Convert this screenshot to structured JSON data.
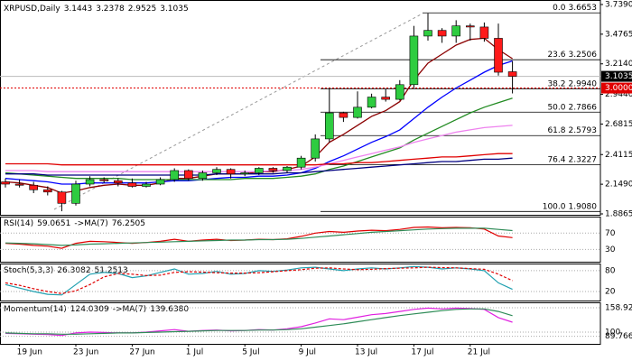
{
  "chart_data": [
    {
      "type": "candlestick",
      "title": "XRPUSD,Daily",
      "ohlc_header": [
        3.1443,
        3.2378,
        2.9525,
        3.1035
      ],
      "categories": [
        null,
        "19 Jun",
        null,
        null,
        null,
        "23 Jun",
        null,
        null,
        null,
        "27 Jun",
        null,
        null,
        null,
        "1 Jul",
        null,
        null,
        null,
        "5 Jul",
        null,
        null,
        null,
        "9 Jul",
        null,
        null,
        null,
        "13 Jul",
        null,
        null,
        null,
        "17 Jul",
        null,
        null,
        null,
        "21 Jul",
        null,
        null,
        null
      ],
      "open": [
        2.17,
        2.15,
        2.14,
        2.1,
        2.08,
        1.98,
        2.15,
        2.19,
        2.18,
        2.16,
        2.13,
        2.15,
        2.19,
        2.27,
        2.2,
        2.25,
        2.28,
        2.24,
        2.25,
        2.29,
        2.27,
        2.3,
        2.38,
        2.55,
        2.78,
        2.74,
        2.83,
        2.92,
        2.9,
        3.03,
        3.46,
        3.51,
        3.46,
        3.55,
        3.54,
        3.44,
        3.1443
      ],
      "high": [
        2.2,
        2.19,
        2.17,
        2.13,
        2.09,
        2.18,
        2.22,
        2.21,
        2.2,
        2.2,
        2.17,
        2.21,
        2.29,
        2.28,
        2.27,
        2.3,
        2.29,
        2.27,
        2.3,
        2.3,
        2.31,
        2.4,
        2.59,
        3.0,
        2.79,
        2.97,
        2.95,
        2.99,
        3.07,
        3.55,
        3.66,
        3.53,
        3.6,
        3.57,
        3.58,
        3.57,
        3.2378
      ],
      "low": [
        2.12,
        2.12,
        2.07,
        2.05,
        1.91,
        1.96,
        2.13,
        2.16,
        2.13,
        2.12,
        2.12,
        2.14,
        2.17,
        2.18,
        2.18,
        2.23,
        2.2,
        2.22,
        2.23,
        2.25,
        2.25,
        2.28,
        2.35,
        2.52,
        2.7,
        2.73,
        2.82,
        2.88,
        2.89,
        3.0,
        3.42,
        3.4,
        3.4,
        3.42,
        3.41,
        3.11,
        2.9525
      ],
      "close": [
        2.15,
        2.14,
        2.1,
        2.08,
        1.98,
        2.15,
        2.19,
        2.18,
        2.16,
        2.13,
        2.15,
        2.19,
        2.27,
        2.2,
        2.25,
        2.28,
        2.24,
        2.25,
        2.29,
        2.27,
        2.3,
        2.38,
        2.55,
        2.78,
        2.74,
        2.83,
        2.92,
        2.9,
        3.03,
        3.46,
        3.51,
        3.46,
        3.55,
        3.54,
        3.44,
        3.14,
        3.1035
      ],
      "up_color": "#2ecc40",
      "down_color": "#ff1a1a",
      "series": [
        {
          "color": "#8b0000",
          "values": [
            2.17,
            2.16,
            2.14,
            2.12,
            2.07,
            2.09,
            2.12,
            2.14,
            2.15,
            2.14,
            2.14,
            2.16,
            2.2,
            2.2,
            2.22,
            2.24,
            2.24,
            2.24,
            2.26,
            2.26,
            2.28,
            2.31,
            2.39,
            2.52,
            2.59,
            2.67,
            2.75,
            2.8,
            2.88,
            3.07,
            3.22,
            3.3,
            3.38,
            3.43,
            3.44,
            3.34,
            3.26
          ]
        },
        {
          "color": "#0000ff",
          "values": [
            2.2,
            2.19,
            2.18,
            2.17,
            2.15,
            2.15,
            2.16,
            2.16,
            2.16,
            2.16,
            2.16,
            2.17,
            2.18,
            2.18,
            2.19,
            2.2,
            2.21,
            2.21,
            2.22,
            2.22,
            2.23,
            2.25,
            2.29,
            2.35,
            2.4,
            2.46,
            2.52,
            2.57,
            2.63,
            2.73,
            2.83,
            2.92,
            3.0,
            3.07,
            3.14,
            3.2,
            3.24
          ]
        },
        {
          "color": "#228b22",
          "values": [
            2.25,
            2.24,
            2.23,
            2.22,
            2.21,
            2.2,
            2.2,
            2.2,
            2.2,
            2.19,
            2.19,
            2.19,
            2.19,
            2.19,
            2.19,
            2.19,
            2.19,
            2.2,
            2.2,
            2.2,
            2.21,
            2.22,
            2.24,
            2.28,
            2.31,
            2.35,
            2.39,
            2.43,
            2.47,
            2.54,
            2.6,
            2.66,
            2.72,
            2.78,
            2.83,
            2.87,
            2.91
          ]
        },
        {
          "color": "#ee82ee",
          "values": [
            2.27,
            2.27,
            2.27,
            2.26,
            2.26,
            2.26,
            2.26,
            2.26,
            2.26,
            2.26,
            2.26,
            2.26,
            2.26,
            2.26,
            2.26,
            2.26,
            2.26,
            2.26,
            2.26,
            2.27,
            2.27,
            2.28,
            2.3,
            2.33,
            2.36,
            2.39,
            2.42,
            2.45,
            2.48,
            2.52,
            2.55,
            2.58,
            2.61,
            2.63,
            2.65,
            2.66,
            2.67
          ]
        },
        {
          "color": "#e00000",
          "values": [
            2.33,
            2.33,
            2.33,
            2.33,
            2.32,
            2.32,
            2.32,
            2.32,
            2.32,
            2.32,
            2.32,
            2.32,
            2.32,
            2.32,
            2.32,
            2.32,
            2.32,
            2.32,
            2.32,
            2.32,
            2.32,
            2.32,
            2.32,
            2.33,
            2.33,
            2.34,
            2.34,
            2.35,
            2.36,
            2.37,
            2.38,
            2.39,
            2.39,
            2.4,
            2.41,
            2.42,
            2.42
          ]
        },
        {
          "color": "#000080",
          "values": [
            2.24,
            2.24,
            2.24,
            2.23,
            2.23,
            2.23,
            2.23,
            2.23,
            2.23,
            2.23,
            2.23,
            2.23,
            2.23,
            2.23,
            2.23,
            2.24,
            2.24,
            2.24,
            2.24,
            2.24,
            2.25,
            2.25,
            2.26,
            2.27,
            2.28,
            2.29,
            2.3,
            2.31,
            2.32,
            2.33,
            2.34,
            2.35,
            2.35,
            2.36,
            2.37,
            2.37,
            2.38
          ]
        }
      ],
      "ylim": [
        1.8865,
        3.739
      ],
      "yticks": [
        {
          "value": 3.739,
          "label": "3.7390"
        },
        3.4765,
        {
          "value": 3.214,
          "label": "3.2140"
        },
        {
          "value": 2.944,
          "label": "2.9440"
        },
        2.6815,
        2.4115,
        {
          "value": 2.149,
          "label": "2.1490"
        },
        1.8865
      ],
      "fib_levels": [
        {
          "ratio": "0.0",
          "price": 3.6653
        },
        {
          "ratio": "23.6",
          "price": 3.2506
        },
        {
          "ratio": "38.2",
          "price": {
            "value": 2.994,
            "label": "2.9940"
          }
        },
        {
          "ratio": "50.0",
          "price": 2.7866
        },
        {
          "ratio": "61.8",
          "price": 2.5793
        },
        {
          "ratio": "76.4",
          "price": 2.3227
        },
        {
          "ratio": "100.0",
          "price": {
            "value": 1.908,
            "label": "1.9080"
          }
        }
      ],
      "last_price": 3.1035,
      "alert_price": {
        "value": 3,
        "label": "3.0000"
      }
    },
    {
      "type": "line",
      "title": "RSI(14)",
      "value": 59.0651,
      "ma_label": "->MA(7)",
      "ma_value": 76.2505,
      "series": [
        {
          "color": "#e00000",
          "values": [
            45,
            43,
            40,
            38,
            33,
            45,
            50,
            49,
            47,
            45,
            47,
            50,
            55,
            50,
            53,
            55,
            52,
            53,
            55,
            54,
            56,
            62,
            70,
            74,
            72,
            75,
            77,
            76,
            79,
            84,
            85,
            83,
            84,
            83,
            80,
            63,
            59.0651
          ]
        },
        {
          "color": "#2e8b57",
          "values": [
            46,
            45,
            44,
            42,
            40,
            41,
            43,
            44,
            45,
            46,
            47,
            48,
            49,
            50,
            51,
            52,
            53,
            53,
            54,
            54,
            55,
            57,
            60,
            63,
            66,
            69,
            72,
            74,
            76,
            78,
            80,
            81,
            82,
            82,
            82,
            79,
            76.2505
          ]
        }
      ],
      "ylim": [
        0,
        106
      ],
      "yticks": [
        70,
        30
      ]
    },
    {
      "type": "line",
      "title": "Stoch(5,3,3)",
      "value": 26.3082,
      "ma_value": 51.2513,
      "series": [
        {
          "color": "#20a0b0",
          "values": [
            40,
            30,
            20,
            12,
            10,
            40,
            70,
            75,
            72,
            60,
            65,
            75,
            85,
            70,
            72,
            78,
            70,
            72,
            80,
            78,
            82,
            88,
            90,
            85,
            80,
            85,
            88,
            85,
            88,
            92,
            90,
            85,
            88,
            85,
            80,
            45,
            26.3082
          ]
        },
        {
          "color": "#e00000",
          "dashed": true,
          "values": [
            45,
            38,
            28,
            20,
            14,
            22,
            40,
            62,
            72,
            70,
            66,
            67,
            75,
            77,
            76,
            74,
            73,
            73,
            74,
            77,
            80,
            83,
            87,
            88,
            85,
            83,
            84,
            86,
            87,
            88,
            90,
            89,
            88,
            86,
            84,
            70,
            51.2513
          ]
        }
      ],
      "ylim": [
        -6,
        98
      ],
      "yticks": [
        80,
        20
      ]
    },
    {
      "type": "line",
      "title": "Momentum(14)",
      "value": 124.0309,
      "ma_label": "->MA(7)",
      "ma_value": {
        "value": 139.638,
        "label": "139.6380"
      },
      "series": [
        {
          "color": "#e020e0",
          "values": [
            97,
            96,
            95,
            94,
            92,
            98,
            100,
            99,
            98,
            98,
            100,
            103,
            106,
            102,
            104,
            105,
            103,
            104,
            106,
            105,
            108,
            113,
            122,
            132,
            130,
            136,
            142,
            145,
            150,
            155,
            158,
            156,
            158,
            157,
            155,
            135,
            124.0309
          ]
        },
        {
          "color": "#2e8b57",
          "values": [
            98,
            97,
            96,
            96,
            95,
            95,
            96,
            97,
            98,
            98,
            99,
            100,
            101,
            102,
            103,
            104,
            104,
            104,
            105,
            105,
            106,
            108,
            112,
            116,
            120,
            125,
            130,
            135,
            140,
            144,
            148,
            152,
            155,
            156,
            156,
            150,
            139.638
          ]
        }
      ],
      "ylim": [
        71.6,
        169.8
      ],
      "yticks": [
        158.92,
        100,
        89.7661
      ]
    }
  ]
}
